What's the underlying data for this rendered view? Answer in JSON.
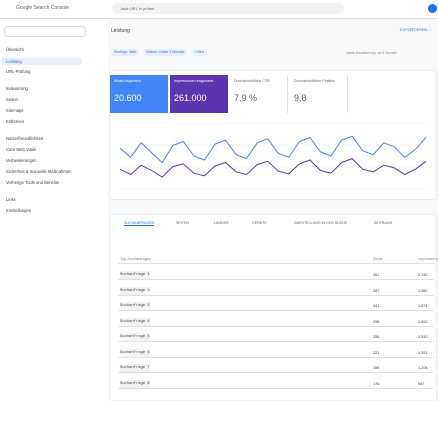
{
  "topbar": {
    "product": "Google Search Console",
    "search": "Jede URL in prüfen"
  },
  "sidebar": {
    "items": [
      "Übersicht",
      "Leistung",
      "URL-Prüfung",
      "Indexierung",
      "Seiten",
      "Sitemaps",
      "Entfernen",
      "Nutzerfreundlichkeit",
      "Core Web Vitals",
      "Verbesserungen",
      "Sicherheit & manuelle Maßnahmen",
      "Vorherige Tools und Berichte",
      "Links",
      "Einstellungen"
    ]
  },
  "page": {
    "title": "Leistung",
    "export": "EXPORTIEREN",
    "filters": [
      "Suchtyp: Web",
      "Datum: Letzte 3 Monate",
      "+ Neu"
    ],
    "updated": "Letzte Aktualisierung: vor 6 Stunden"
  },
  "metrics": [
    {
      "label": "Klicks insgesamt",
      "value": "20.600",
      "color": "#4285f4"
    },
    {
      "label": "Impressionen insgesamt",
      "value": "261.000",
      "color": "#5e35b1"
    },
    {
      "label": "Durchschnittliche CTR",
      "value": "7,9 %",
      "color": "#fff"
    },
    {
      "label": "Durchschnittliche Position",
      "value": "9,8",
      "color": "#fff"
    }
  ],
  "chart": {
    "type": "line",
    "ylim": [
      0,
      100
    ],
    "series": [
      {
        "color": "#4285f4",
        "values": [
          62,
          48,
          70,
          55,
          40,
          66,
          72,
          50,
          44,
          68,
          74,
          52,
          46,
          70,
          76,
          54,
          48,
          72,
          78,
          56,
          50,
          74,
          80,
          58,
          52,
          70,
          64,
          48,
          60,
          78
        ]
      },
      {
        "color": "#5e35b1",
        "values": [
          30,
          22,
          36,
          28,
          18,
          34,
          38,
          24,
          20,
          35,
          40,
          26,
          22,
          37,
          42,
          27,
          23,
          38,
          44,
          28,
          24,
          40,
          46,
          30,
          26,
          36,
          32,
          22,
          30,
          42
        ]
      }
    ]
  },
  "tabs": [
    "SUCHANFRAGEN",
    "SEITEN",
    "LÄNDER",
    "GERÄTE",
    "DARSTELLUNG IN DER SUCHE",
    "ZEITRAUM"
  ],
  "table": {
    "headers": [
      "Top-Suchanfragen",
      "Klicks",
      "Impressionen"
    ],
    "rows": [
      [
        "Suchanfrage 1",
        "452",
        "2.145"
      ],
      [
        "Suchanfrage 2",
        "387",
        "1.960"
      ],
      [
        "Suchanfrage 3",
        "341",
        "1.874"
      ],
      [
        "Suchanfrage 4",
        "298",
        "1.652"
      ],
      [
        "Suchanfrage 5",
        "256",
        "1.540"
      ],
      [
        "Suchanfrage 6",
        "221",
        "1.391"
      ],
      [
        "Suchanfrage 7",
        "198",
        "1.204"
      ],
      [
        "Suchanfrage 8",
        "176",
        "987"
      ]
    ]
  }
}
